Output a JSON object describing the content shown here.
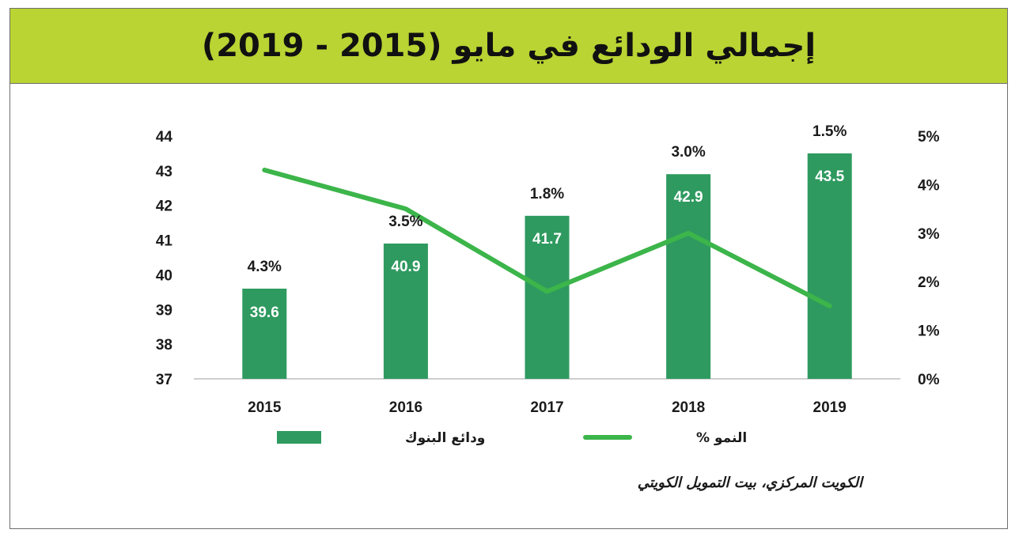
{
  "header": {
    "title": "إجمالي الودائع في مايو (2015 - 2019)"
  },
  "chart_data": {
    "type": "bar",
    "categories": [
      "2015",
      "2016",
      "2017",
      "2018",
      "2019"
    ],
    "series": [
      {
        "name": "ودائع البنوك",
        "type": "bar",
        "axis": "left",
        "values": [
          39.6,
          40.9,
          41.7,
          42.9,
          43.5
        ],
        "labels": [
          "39.6",
          "40.9",
          "41.7",
          "42.9",
          "43.5"
        ],
        "color": "#2e9a5f"
      },
      {
        "name": "النمو %",
        "type": "line",
        "axis": "right",
        "values": [
          4.3,
          3.5,
          1.8,
          3.0,
          1.5
        ],
        "labels": [
          "4.3%",
          "3.5%",
          "1.8%",
          "3.0%",
          "1.5%"
        ],
        "color": "#3cb54a"
      }
    ],
    "ylim": [
      37,
      44
    ],
    "yticks": [
      "37",
      "38",
      "39",
      "40",
      "41",
      "42",
      "43",
      "44"
    ],
    "y2lim": [
      0,
      5
    ],
    "y2ticks": [
      "0%",
      "1%",
      "2%",
      "3%",
      "4%",
      "5%"
    ],
    "legend_position": "bottom",
    "grid": false
  },
  "footer": {
    "source": "الكويت المركزي، بيت التمويل الكويتي"
  }
}
